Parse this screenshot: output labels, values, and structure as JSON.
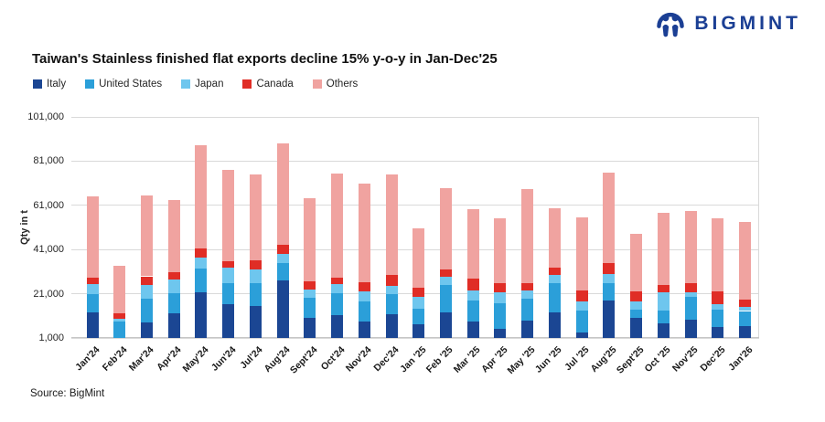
{
  "logo": {
    "text": "BIGMINT"
  },
  "title": "Taiwan's Stainless finished flat exports decline 15% y-o-y in Jan-Dec'25",
  "source": "Source: BigMint",
  "colors": {
    "brand_navy": "#1b3f94",
    "grid": "#d9d9d9",
    "italy": "#1b4693",
    "united_states": "#2b9fd9",
    "japan": "#6ec6ee",
    "canada": "#e02d26",
    "others": "#f0a3a0"
  },
  "chart_data": {
    "type": "bar",
    "stacked": true,
    "title": "Taiwan's Stainless finished flat exports decline 15% y-o-y in Jan-Dec'25",
    "xlabel": "",
    "ylabel": "Qty in t",
    "ylim": [
      1000,
      101000
    ],
    "baseline": 1000,
    "grid": true,
    "legend_position": "top-left",
    "y_ticks": [
      "1,000",
      "21,000",
      "41,000",
      "61,000",
      "81,000",
      "101,000"
    ],
    "categories": [
      "Jan'24",
      "Feb'24",
      "Mar'24",
      "Apr'24",
      "May'24",
      "Jun'24",
      "Jul'24",
      "Aug'24",
      "Sept'24",
      "Oct'24",
      "Nov'24",
      "Dec'24",
      "Jan '25",
      "Feb '25",
      "Mar '25",
      "Apr '25",
      "May '25",
      "Jun '25",
      "Jul '25",
      "Aug'25",
      "Sept'25",
      "Oct '25",
      "Nov'25",
      "Dec'25",
      "Jan'26"
    ],
    "series": [
      {
        "name": "Italy",
        "color": "#1b4693",
        "values": [
          11500,
          0,
          7000,
          11100,
          20800,
          15300,
          14300,
          26100,
          9000,
          10300,
          7400,
          10800,
          6000,
          11500,
          7400,
          4200,
          7800,
          11500,
          2500,
          17100,
          9200,
          6500,
          8300,
          5000,
          5300
        ]
      },
      {
        "name": "United States",
        "color": "#2b9fd9",
        "values": [
          8300,
          7300,
          10800,
          9200,
          10800,
          9400,
          10400,
          7900,
          9200,
          9900,
          9300,
          9000,
          7400,
          12500,
          9700,
          11500,
          10000,
          13200,
          9700,
          7600,
          3800,
          6000,
          10100,
          7900,
          6900
        ]
      },
      {
        "name": "Japan",
        "color": "#6ec6ee",
        "values": [
          4600,
          1500,
          6300,
          6100,
          4900,
          7200,
          6300,
          3900,
          3800,
          4000,
          4200,
          3800,
          5100,
          3800,
          4600,
          5100,
          3900,
          3900,
          4200,
          4200,
          3500,
          8000,
          2400,
          2400,
          1700
        ]
      },
      {
        "name": "Canada",
        "color": "#e02d26",
        "values": [
          3000,
          2300,
          3800,
          3200,
          4000,
          3000,
          4000,
          4200,
          3800,
          3200,
          4200,
          5000,
          4200,
          3200,
          5100,
          3900,
          3300,
          3100,
          4900,
          5100,
          4400,
          3300,
          4200,
          5600,
          3600
        ]
      },
      {
        "name": "Others",
        "color": "#f0a3a0",
        "values": [
          36600,
          21700,
          36600,
          33000,
          46500,
          41200,
          39000,
          45900,
          37300,
          47000,
          44800,
          45400,
          26700,
          36800,
          31300,
          29500,
          42500,
          26800,
          33300,
          41000,
          26300,
          32900,
          32400,
          33300,
          35000
        ]
      }
    ]
  }
}
